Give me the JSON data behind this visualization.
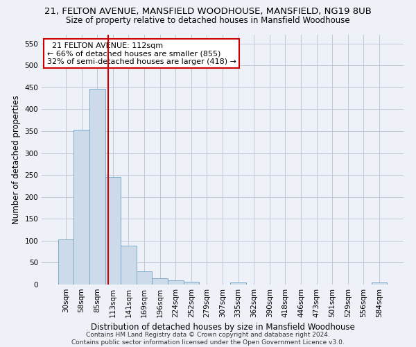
{
  "title_line1": "21, FELTON AVENUE, MANSFIELD WOODHOUSE, MANSFIELD, NG19 8UB",
  "title_line2": "Size of property relative to detached houses in Mansfield Woodhouse",
  "xlabel": "Distribution of detached houses by size in Mansfield Woodhouse",
  "ylabel": "Number of detached properties",
  "footnote": "Contains HM Land Registry data © Crown copyright and database right 2024.\nContains public sector information licensed under the Open Government Licence v3.0.",
  "bar_color": "#ccdaea",
  "bar_edge_color": "#7aaac8",
  "grid_color": "#c0c8d8",
  "background_color": "#eef2f8",
  "annotation_box_color": "#ffffff",
  "annotation_border_color": "#cc0000",
  "vline_color": "#cc0000",
  "categories": [
    "30sqm",
    "58sqm",
    "85sqm",
    "113sqm",
    "141sqm",
    "169sqm",
    "196sqm",
    "224sqm",
    "252sqm",
    "279sqm",
    "307sqm",
    "335sqm",
    "362sqm",
    "390sqm",
    "418sqm",
    "446sqm",
    "473sqm",
    "501sqm",
    "529sqm",
    "556sqm",
    "584sqm"
  ],
  "values": [
    103,
    353,
    447,
    245,
    88,
    30,
    14,
    9,
    6,
    0,
    0,
    5,
    0,
    0,
    0,
    0,
    0,
    0,
    0,
    0,
    5
  ],
  "ylim": [
    0,
    570
  ],
  "yticks": [
    0,
    50,
    100,
    150,
    200,
    250,
    300,
    350,
    400,
    450,
    500,
    550
  ],
  "vline_position": 2.72,
  "annotation_text": "  21 FELTON AVENUE: 112sqm\n← 66% of detached houses are smaller (855)\n32% of semi-detached houses are larger (418) →",
  "title_fontsize": 9.5,
  "subtitle_fontsize": 8.5,
  "axis_label_fontsize": 8.5,
  "tick_fontsize": 7.5,
  "annotation_fontsize": 8,
  "footnote_fontsize": 6.5
}
